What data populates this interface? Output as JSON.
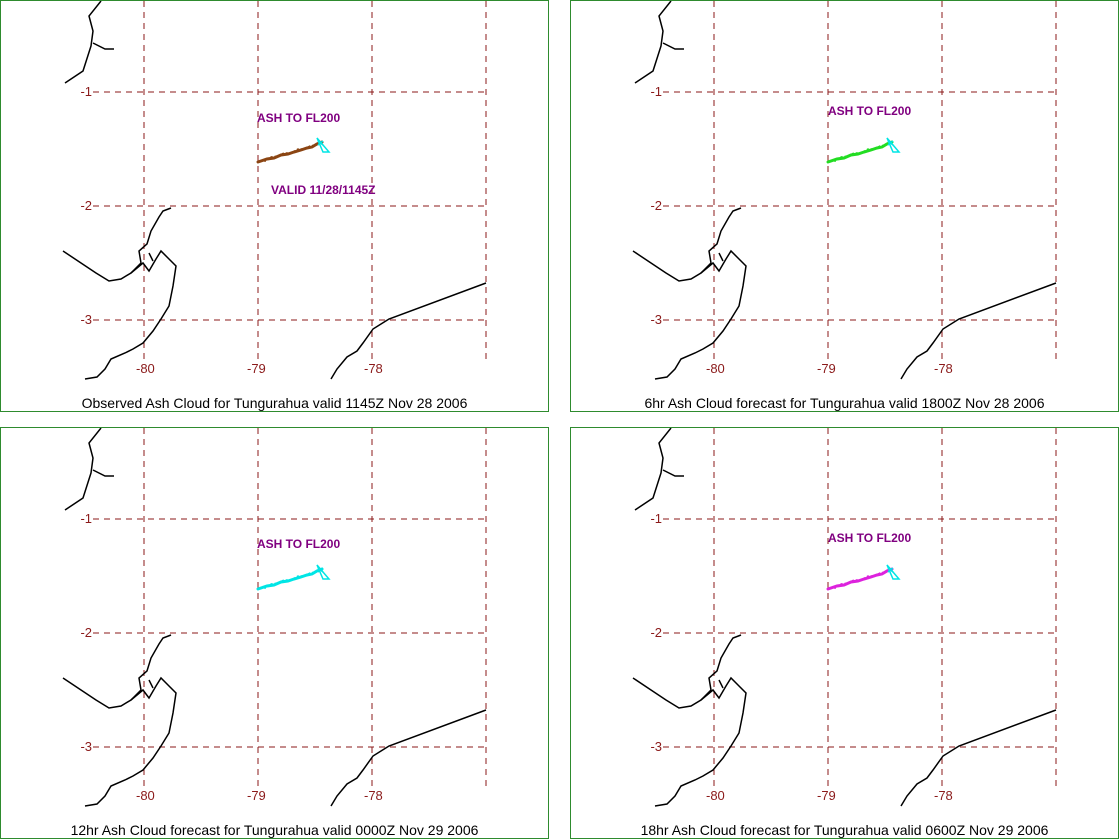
{
  "colors": {
    "border": "#2e8b2e",
    "grid": "#8b1a1a",
    "tick": "#8b1a1a",
    "coast": "#000000",
    "annotation": "#800080",
    "volcano": "#00e5e5"
  },
  "axes": {
    "lon_ticks": [
      "-80",
      "-79",
      "-78"
    ],
    "lat_ticks": [
      "-1",
      "-2",
      "-3"
    ]
  },
  "panels": [
    {
      "caption": "Observed Ash Cloud for Tungurahua valid 1145Z Nov 28 2006",
      "annotation": "ASH TO FL200",
      "valid_label": "VALID 11/28/1145Z",
      "cloud_color": "#8b4513"
    },
    {
      "caption": "6hr Ash Cloud forecast for Tungurahua valid 1800Z Nov 28 2006",
      "annotation": "ASH TO FL200",
      "valid_label": "",
      "cloud_color": "#22dd22"
    },
    {
      "caption": "12hr Ash Cloud forecast for Tungurahua valid 0000Z Nov 29 2006",
      "annotation": "ASH TO FL200",
      "valid_label": "",
      "cloud_color": "#00e5e5"
    },
    {
      "caption": "18hr Ash Cloud forecast for Tungurahua valid 0600Z Nov 29 2006",
      "annotation": "ASH TO FL200",
      "valid_label": "",
      "cloud_color": "#dd22dd"
    }
  ]
}
